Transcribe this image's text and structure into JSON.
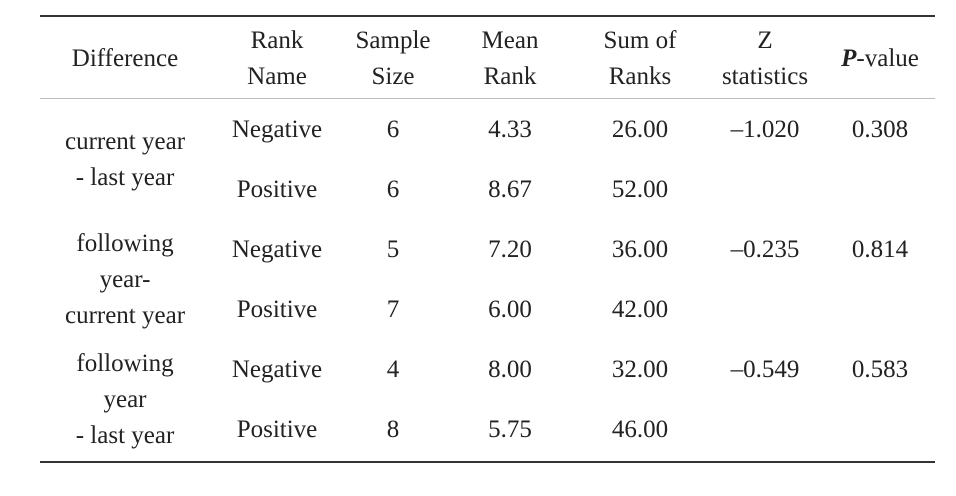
{
  "table": {
    "header": [
      [
        "Difference"
      ],
      [
        "Rank",
        "Name"
      ],
      [
        "Sample",
        "Size"
      ],
      [
        "Mean",
        "Rank"
      ],
      [
        "Sum of",
        "Ranks"
      ],
      [
        "Z",
        "statistics"
      ],
      [
        "P",
        "-value"
      ]
    ],
    "groups": [
      {
        "difference": [
          "current year",
          "- last year"
        ],
        "z": "–1.020",
        "p": "0.308",
        "rows": [
          [
            "Negative",
            "6",
            "4.33",
            "26.00"
          ],
          [
            "Positive",
            "6",
            "8.67",
            "52.00"
          ]
        ]
      },
      {
        "difference": [
          "following",
          "year-",
          "current year"
        ],
        "z": "–0.235",
        "p": "0.814",
        "rows": [
          [
            "Negative",
            "5",
            "7.20",
            "36.00"
          ],
          [
            "Positive",
            "7",
            "6.00",
            "42.00"
          ]
        ]
      },
      {
        "difference": [
          "following",
          "year",
          "- last year"
        ],
        "z": "–0.549",
        "p": "0.583",
        "rows": [
          [
            "Negative",
            "4",
            "8.00",
            "32.00"
          ],
          [
            "Positive",
            "8",
            "5.75",
            "46.00"
          ]
        ]
      }
    ]
  }
}
